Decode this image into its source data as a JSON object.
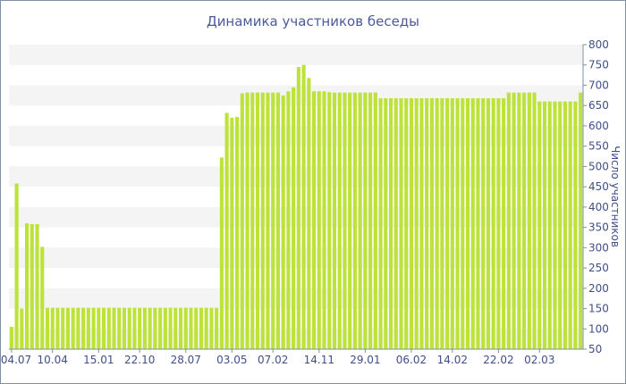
{
  "chart_data": {
    "type": "bar",
    "title": "Динамика участников беседы",
    "xlabel": "",
    "ylabel": "Число участников",
    "ylim": [
      50,
      800
    ],
    "yticks": [
      50,
      100,
      150,
      200,
      250,
      300,
      350,
      400,
      450,
      500,
      550,
      600,
      650,
      700,
      750,
      800
    ],
    "y_axis_side": "right",
    "grid": "alternating horizontal bands",
    "bar_color": "#bde33b",
    "band_color": "#f4f4f4",
    "x_ticks": [
      {
        "index": 0,
        "label": "04.07"
      },
      {
        "index": 8,
        "label": "10.04"
      },
      {
        "index": 17,
        "label": "15.01"
      },
      {
        "index": 25,
        "label": "22.10"
      },
      {
        "index": 34,
        "label": "28.07"
      },
      {
        "index": 43,
        "label": "03.05"
      },
      {
        "index": 51,
        "label": "07.02"
      },
      {
        "index": 60,
        "label": "14.11"
      },
      {
        "index": 69,
        "label": "29.01"
      },
      {
        "index": 78,
        "label": "06.02"
      },
      {
        "index": 86,
        "label": "14.02"
      },
      {
        "index": 95,
        "label": "22.02"
      },
      {
        "index": 103,
        "label": "02.03"
      }
    ],
    "values": [
      105,
      458,
      150,
      360,
      358,
      358,
      302,
      152,
      152,
      152,
      152,
      152,
      152,
      152,
      152,
      152,
      152,
      152,
      152,
      152,
      152,
      152,
      152,
      152,
      152,
      152,
      152,
      152,
      152,
      152,
      152,
      152,
      152,
      152,
      152,
      152,
      152,
      152,
      152,
      152,
      152,
      522,
      632,
      620,
      622,
      680,
      682,
      682,
      682,
      682,
      682,
      682,
      682,
      675,
      685,
      695,
      745,
      750,
      718,
      685,
      685,
      685,
      683,
      682,
      682,
      682,
      682,
      682,
      682,
      682,
      682,
      682,
      668,
      668,
      668,
      668,
      668,
      668,
      668,
      668,
      668,
      668,
      668,
      668,
      668,
      668,
      668,
      668,
      668,
      668,
      668,
      668,
      668,
      668,
      668,
      668,
      668,
      682,
      682,
      682,
      682,
      682,
      682,
      660,
      660,
      660,
      660,
      660,
      660,
      660,
      660,
      682
    ]
  }
}
